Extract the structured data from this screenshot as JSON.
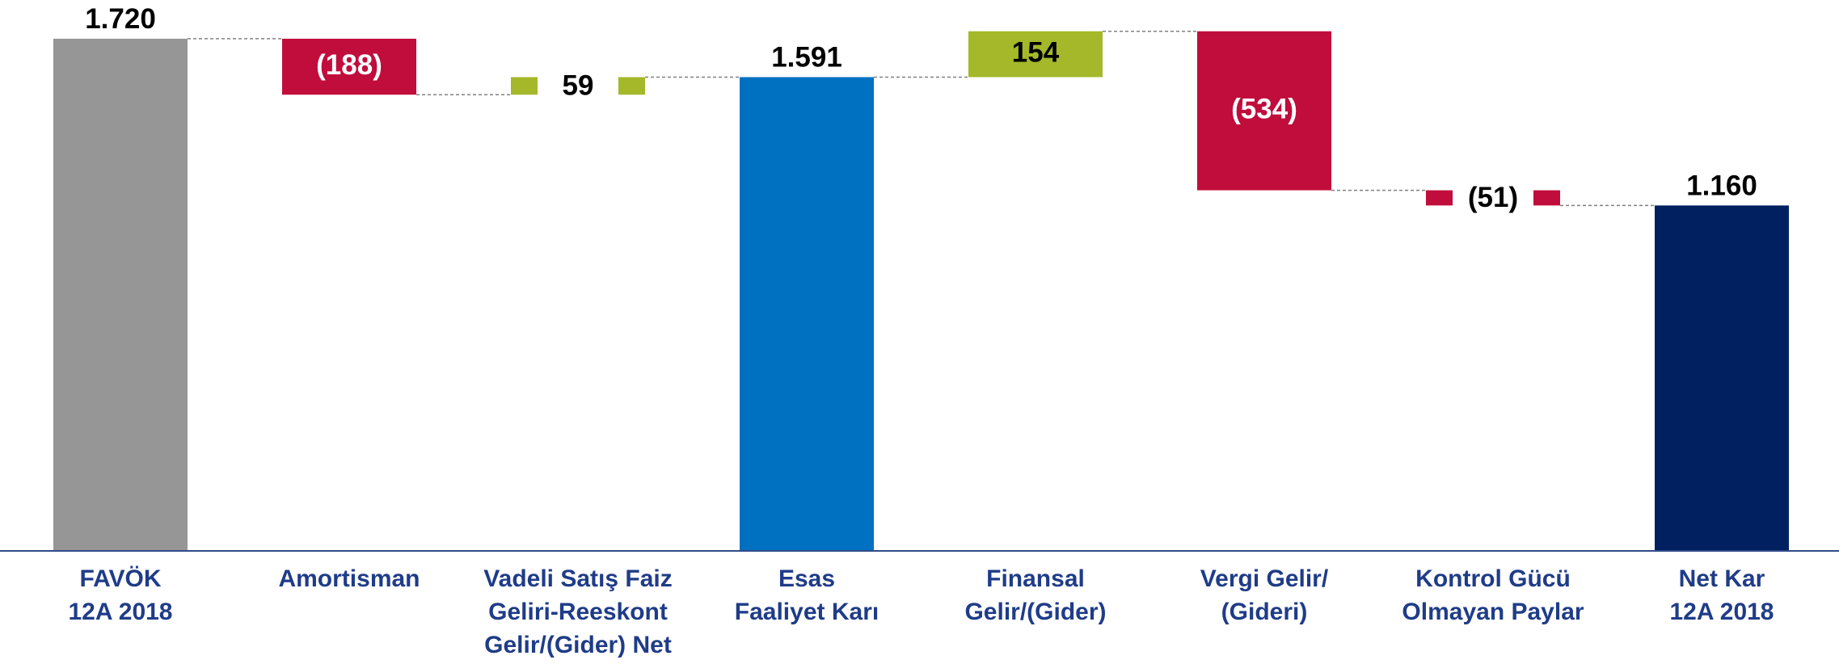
{
  "chart_data": {
    "type": "waterfall",
    "categories": [
      [
        "FAVÖK",
        "12A 2018"
      ],
      [
        "Amortisman"
      ],
      [
        "Vadeli Satış Faiz",
        "Geliri-Reeskont",
        "Gelir/(Gider) Net"
      ],
      [
        "Esas",
        "Faaliyet Karı"
      ],
      [
        "Finansal",
        "Gelir/(Gider)"
      ],
      [
        "Vergi Gelir/",
        "(Gideri)"
      ],
      [
        "Kontrol Gücü",
        "Olmayan Paylar"
      ],
      [
        "Net Kar",
        "12A 2018"
      ]
    ],
    "values": [
      1720,
      -188,
      59,
      1591,
      154,
      -534,
      -51,
      1160
    ],
    "value_labels": [
      "1.720",
      "(188)",
      "59",
      "1.591",
      "154",
      "(534)",
      "(51)",
      "1.160"
    ],
    "totals": [
      true,
      false,
      false,
      true,
      false,
      false,
      false,
      true
    ],
    "colors": [
      "#969696",
      "#c00d3c",
      "#a5b82a",
      "#0070c0",
      "#a5b82a",
      "#c00d3c",
      "#c00d3c",
      "#002060"
    ],
    "ylim": [
      0,
      1850
    ]
  }
}
